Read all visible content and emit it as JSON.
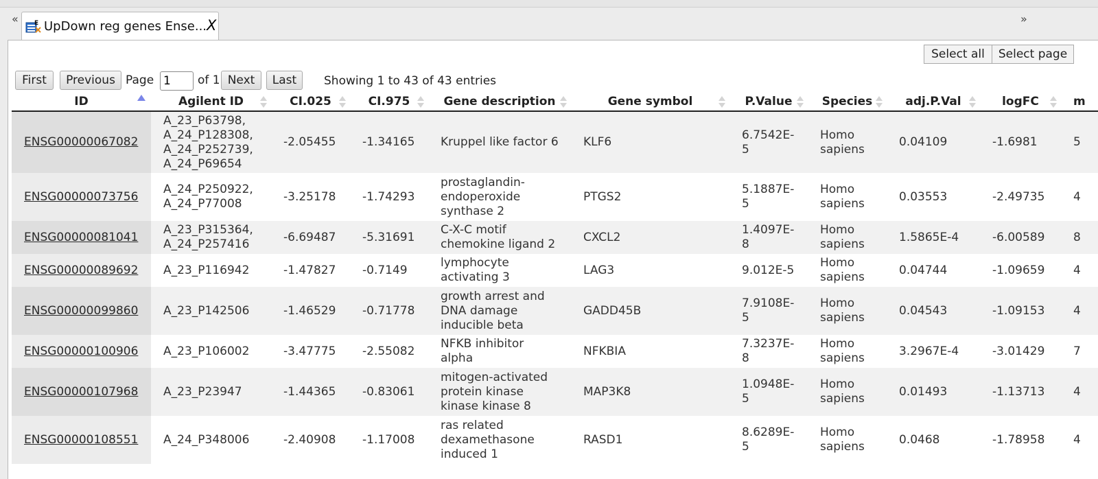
{
  "window": {
    "nav_left": "«",
    "nav_right": "»",
    "tab_title": "UpDown reg genes Ense...",
    "tab_close": "X"
  },
  "toolbar": {
    "select_all": "Select all",
    "select_page": "Select page",
    "first": "First",
    "previous": "Previous",
    "page_label": "Page",
    "page_value": "1",
    "of_label": "of 1",
    "next": "Next",
    "last": "Last",
    "showing": "Showing 1 to 43 of 43 entries"
  },
  "table": {
    "columns": [
      "ID",
      "Agilent ID",
      "CI.025",
      "CI.975",
      "Gene description",
      "Gene symbol",
      "P.Value",
      "Species",
      "adj.P.Val",
      "logFC",
      "m"
    ],
    "rows": [
      {
        "id": "ENSG00000067082",
        "agilent": "A_23_P63798, A_24_P128308, A_24_P252739, A_24_P69654",
        "ci025": "-2.05455",
        "ci975": "-1.34165",
        "desc": "Kruppel like factor 6",
        "symbol": "KLF6",
        "pval": "6.7542E-5",
        "species": "Homo sapiens",
        "adjp": "0.04109",
        "logfc": "-1.6981",
        "m": "5"
      },
      {
        "id": "ENSG00000073756",
        "agilent": "A_24_P250922, A_24_P77008",
        "ci025": "-3.25178",
        "ci975": "-1.74293",
        "desc": "prostaglandin-endoperoxide synthase 2",
        "symbol": "PTGS2",
        "pval": "5.1887E-5",
        "species": "Homo sapiens",
        "adjp": "0.03553",
        "logfc": "-2.49735",
        "m": "4"
      },
      {
        "id": "ENSG00000081041",
        "agilent": "A_23_P315364, A_24_P257416",
        "ci025": "-6.69487",
        "ci975": "-5.31691",
        "desc": "C-X-C motif chemokine ligand 2",
        "symbol": "CXCL2",
        "pval": "1.4097E-8",
        "species": "Homo sapiens",
        "adjp": "1.5865E-4",
        "logfc": "-6.00589",
        "m": "8"
      },
      {
        "id": "ENSG00000089692",
        "agilent": "A_23_P116942",
        "ci025": "-1.47827",
        "ci975": "-0.7149",
        "desc": "lymphocyte activating 3",
        "symbol": "LAG3",
        "pval": "9.012E-5",
        "species": "Homo sapiens",
        "adjp": "0.04744",
        "logfc": "-1.09659",
        "m": "4"
      },
      {
        "id": "ENSG00000099860",
        "agilent": "A_23_P142506",
        "ci025": "-1.46529",
        "ci975": "-0.71778",
        "desc": "growth arrest and DNA damage inducible beta",
        "symbol": "GADD45B",
        "pval": "7.9108E-5",
        "species": "Homo sapiens",
        "adjp": "0.04543",
        "logfc": "-1.09153",
        "m": "4"
      },
      {
        "id": "ENSG00000100906",
        "agilent": "A_23_P106002",
        "ci025": "-3.47775",
        "ci975": "-2.55082",
        "desc": "NFKB inhibitor alpha",
        "symbol": "NFKBIA",
        "pval": "7.3237E-8",
        "species": "Homo sapiens",
        "adjp": "3.2967E-4",
        "logfc": "-3.01429",
        "m": "7"
      },
      {
        "id": "ENSG00000107968",
        "agilent": "A_23_P23947",
        "ci025": "-1.44365",
        "ci975": "-0.83061",
        "desc": "mitogen-activated protein kinase kinase kinase 8",
        "symbol": "MAP3K8",
        "pval": "1.0948E-5",
        "species": "Homo sapiens",
        "adjp": "0.01493",
        "logfc": "-1.13713",
        "m": "4"
      },
      {
        "id": "ENSG00000108551",
        "agilent": "A_24_P348006",
        "ci025": "-2.40908",
        "ci975": "-1.17008",
        "desc": "ras related dexamethasone induced 1",
        "symbol": "RASD1",
        "pval": "8.6289E-5",
        "species": "Homo sapiens",
        "adjp": "0.0468",
        "logfc": "-1.78958",
        "m": "4"
      }
    ]
  },
  "colors": {
    "sort_active": "#7b86e8",
    "row_odd": "#f1f1f1",
    "row_even": "#ffffff",
    "id_cell_odd": "#dedede"
  }
}
